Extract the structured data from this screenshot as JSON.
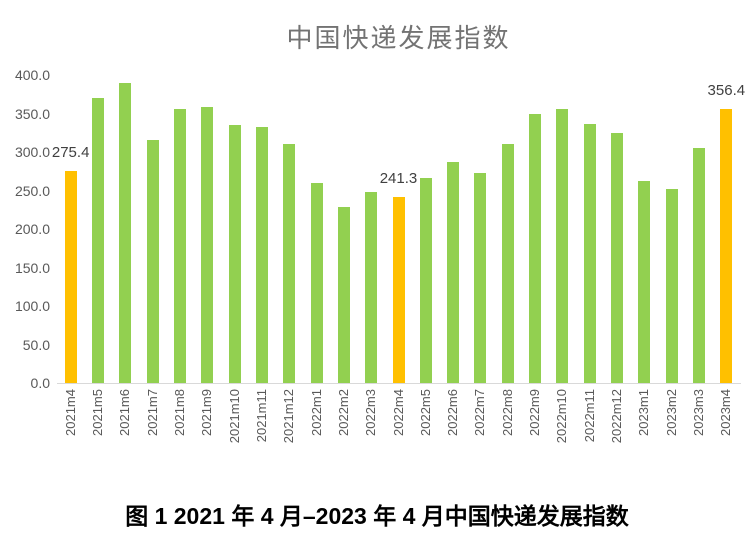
{
  "chart": {
    "title": "中国快递发展指数",
    "caption": "图 1 2021 年 4 月–2023 年 4 月中国快递发展指数"
  },
  "colors": {
    "bar_default": "#92D050",
    "bar_highlight": "#FFC000",
    "axis_text": "#595959",
    "title_text": "#737373",
    "data_label_text": "#404040",
    "axis_line": "#D9D9D9",
    "caption_text": "#000000"
  },
  "chart_data": {
    "type": "bar",
    "title": "中国快递发展指数",
    "categories": [
      "2021m4",
      "2021m5",
      "2021m6",
      "2021m7",
      "2021m8",
      "2021m9",
      "2021m10",
      "2021m11",
      "2021m12",
      "2022m1",
      "2022m2",
      "2022m3",
      "2022m4",
      "2022m5",
      "2022m6",
      "2022m7",
      "2022m8",
      "2022m9",
      "2022m10",
      "2022m11",
      "2022m12",
      "2023m1",
      "2023m2",
      "2023m3",
      "2023m4"
    ],
    "values": [
      275.4,
      370,
      390,
      316,
      356,
      359,
      335,
      333,
      310,
      260,
      228,
      248,
      241.3,
      266,
      287,
      273,
      310,
      350,
      356,
      337,
      325,
      262,
      252,
      305,
      356.4
    ],
    "highlight_indices": [
      0,
      12,
      24
    ],
    "data_labels": [
      {
        "index": 0,
        "text": "275.4"
      },
      {
        "index": 12,
        "text": "241.3"
      },
      {
        "index": 24,
        "text": "356.4"
      }
    ],
    "xlabel": "",
    "ylabel": "",
    "ylim": [
      0,
      400
    ],
    "y_ticks": [
      "400.0",
      "350.0",
      "300.0",
      "250.0",
      "200.0",
      "150.0",
      "100.0",
      "50.0",
      "0.0"
    ],
    "grid": false,
    "legend": false
  }
}
